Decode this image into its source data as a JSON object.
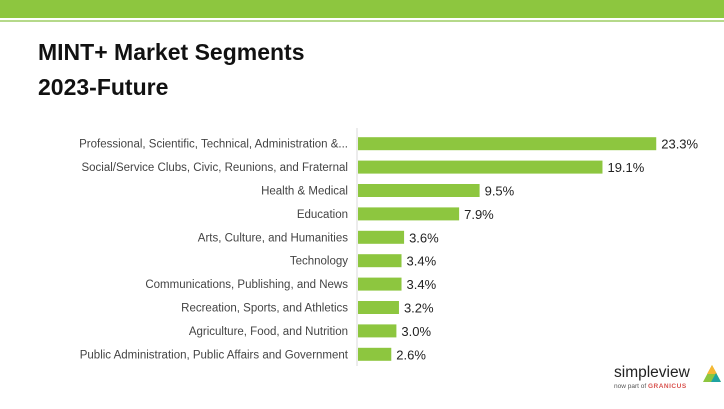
{
  "header": {
    "title_line1": "MINT+ Market Segments",
    "title_line2": "2023-Future"
  },
  "chart_data": {
    "type": "bar",
    "orientation": "horizontal",
    "categories": [
      "Professional, Scientific, Technical, Administration &...",
      "Social/Service Clubs, Civic, Reunions, and Fraternal",
      "Health & Medical",
      "Education",
      "Arts, Culture, and Humanities",
      "Technology",
      "Communications, Publishing, and News",
      "Recreation, Sports, and Athletics",
      "Agriculture, Food, and Nutrition",
      "Public Administration, Public Affairs and Government"
    ],
    "values": [
      23.3,
      19.1,
      9.5,
      7.9,
      3.6,
      3.4,
      3.4,
      3.2,
      3.0,
      2.6
    ],
    "value_labels": [
      "23.3%",
      "19.1%",
      "9.5%",
      "7.9%",
      "3.6%",
      "3.4%",
      "3.4%",
      "3.2%",
      "3.0%",
      "2.6%"
    ],
    "xlim": [
      0,
      25
    ],
    "grid": false,
    "bar_color": "#8dc63f"
  },
  "brand": {
    "name": "simpleview",
    "sub_prefix": "now part of",
    "sub_org": "GRANICUS"
  }
}
